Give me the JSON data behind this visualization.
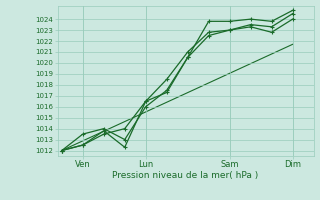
{
  "title": "",
  "xlabel": "Pression niveau de la mer( hPa )",
  "ylabel": "",
  "bg_color": "#cce8e0",
  "grid_color": "#99ccbb",
  "line_color": "#1a6b2a",
  "text_color": "#1a6b2a",
  "ylim": [
    1011.5,
    1025.2
  ],
  "yticks": [
    1012,
    1013,
    1014,
    1015,
    1016,
    1017,
    1018,
    1019,
    1020,
    1021,
    1022,
    1023,
    1024
  ],
  "xtick_labels": [
    "Ven",
    "Lun",
    "Sam",
    "Dim"
  ],
  "xtick_positions": [
    1,
    4,
    8,
    11
  ],
  "xlim": [
    -0.2,
    12.0
  ],
  "line1_x": [
    0,
    1,
    2,
    3,
    4,
    5,
    6,
    7,
    8,
    9,
    10,
    11
  ],
  "line1_y": [
    1012.0,
    1012.5,
    1013.5,
    1014.0,
    1016.5,
    1018.5,
    1021.0,
    1022.8,
    1023.0,
    1023.5,
    1023.3,
    1024.5
  ],
  "line2_x": [
    0,
    1,
    2,
    3,
    4,
    5,
    6,
    7,
    8,
    9,
    10,
    11
  ],
  "line2_y": [
    1012.0,
    1013.5,
    1014.0,
    1013.0,
    1016.0,
    1017.5,
    1020.5,
    1023.8,
    1023.8,
    1024.0,
    1023.8,
    1024.8
  ],
  "line3_x": [
    0,
    11
  ],
  "line3_y": [
    1012.0,
    1021.7
  ],
  "line4_x": [
    0,
    1,
    2,
    3,
    4,
    5,
    6,
    7,
    8,
    9,
    10,
    11
  ],
  "line4_y": [
    1012.0,
    1012.5,
    1013.8,
    1012.3,
    1016.5,
    1017.3,
    1020.5,
    1022.5,
    1023.0,
    1023.3,
    1022.8,
    1024.0
  ]
}
